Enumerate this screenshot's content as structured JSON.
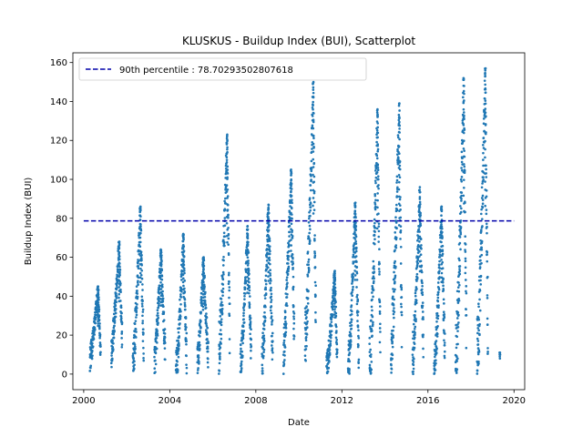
{
  "chart_data": {
    "type": "scatter",
    "title": "KLUSKUS - Buildup Index (BUI), Scatterplot",
    "xlabel": "Date",
    "ylabel": "Buildup Index (BUI)",
    "xlim": [
      "1999-07-01",
      "2020-07-01"
    ],
    "ylim": [
      -8,
      165
    ],
    "x_ticks": [
      "2000",
      "2004",
      "2008",
      "2012",
      "2016",
      "2020"
    ],
    "y_ticks": [
      0,
      20,
      40,
      60,
      80,
      100,
      120,
      140,
      160
    ],
    "grid": false,
    "legend_position": "top-left",
    "colors": {
      "points": "#1f77b4",
      "reference_line": "#0000aa"
    },
    "reference_line": {
      "label": "90th percentile : 78.70293502807618",
      "value": 78.70293502807618,
      "style": "dashed",
      "x_start": "2000-01-01",
      "x_end": "2020-01-01"
    },
    "seasons": [
      {
        "start": "2000-04-15",
        "end": "2000-10-15",
        "base": 8,
        "peak": 45,
        "peak_at": "2000-09-01"
      },
      {
        "start": "2001-04-15",
        "end": "2001-10-15",
        "base": 12,
        "peak": 68,
        "peak_at": "2001-08-25"
      },
      {
        "start": "2002-04-15",
        "end": "2002-10-15",
        "base": 6,
        "peak": 86,
        "peak_at": "2002-08-20"
      },
      {
        "start": "2003-04-15",
        "end": "2003-10-15",
        "base": 6,
        "peak": 64,
        "peak_at": "2003-08-05"
      },
      {
        "start": "2004-04-15",
        "end": "2004-10-15",
        "base": 2,
        "peak": 72,
        "peak_at": "2004-08-20"
      },
      {
        "start": "2005-04-15",
        "end": "2005-10-15",
        "base": 5,
        "peak": 60,
        "peak_at": "2005-07-25"
      },
      {
        "start": "2006-04-15",
        "end": "2006-10-15",
        "base": 12,
        "peak": 123,
        "peak_at": "2006-09-01"
      },
      {
        "start": "2007-04-15",
        "end": "2007-10-15",
        "base": 5,
        "peak": 76,
        "peak_at": "2007-08-15"
      },
      {
        "start": "2008-04-15",
        "end": "2008-10-15",
        "base": 4,
        "peak": 87,
        "peak_at": "2008-08-01"
      },
      {
        "start": "2009-04-15",
        "end": "2009-10-15",
        "base": 12,
        "peak": 105,
        "peak_at": "2009-08-25"
      },
      {
        "start": "2010-04-15",
        "end": "2010-10-15",
        "base": 18,
        "peak": 150,
        "peak_at": "2010-09-01"
      },
      {
        "start": "2011-04-15",
        "end": "2011-10-15",
        "base": 2,
        "peak": 53,
        "peak_at": "2011-09-01"
      },
      {
        "start": "2012-04-15",
        "end": "2012-10-15",
        "base": 3,
        "peak": 88,
        "peak_at": "2012-08-15"
      },
      {
        "start": "2013-04-15",
        "end": "2013-10-15",
        "base": 2,
        "peak": 136,
        "peak_at": "2013-08-28"
      },
      {
        "start": "2014-04-15",
        "end": "2014-10-15",
        "base": 12,
        "peak": 139,
        "peak_at": "2014-09-01"
      },
      {
        "start": "2015-04-15",
        "end": "2015-10-15",
        "base": 8,
        "peak": 96,
        "peak_at": "2015-08-15"
      },
      {
        "start": "2016-04-15",
        "end": "2016-10-15",
        "base": 3,
        "peak": 86,
        "peak_at": "2016-08-20"
      },
      {
        "start": "2017-04-15",
        "end": "2017-10-15",
        "base": 6,
        "peak": 152,
        "peak_at": "2017-09-01"
      },
      {
        "start": "2018-04-15",
        "end": "2018-10-15",
        "base": 9,
        "peak": 157,
        "peak_at": "2018-09-01"
      }
    ],
    "extra_points": [
      {
        "date": "2019-05-01",
        "y": 11
      },
      {
        "date": "2019-05-03",
        "y": 10
      },
      {
        "date": "2019-05-05",
        "y": 9
      },
      {
        "date": "2019-05-07",
        "y": 8
      },
      {
        "date": "2019-05-09",
        "y": 11
      },
      {
        "date": "2019-05-11",
        "y": 10
      }
    ]
  }
}
